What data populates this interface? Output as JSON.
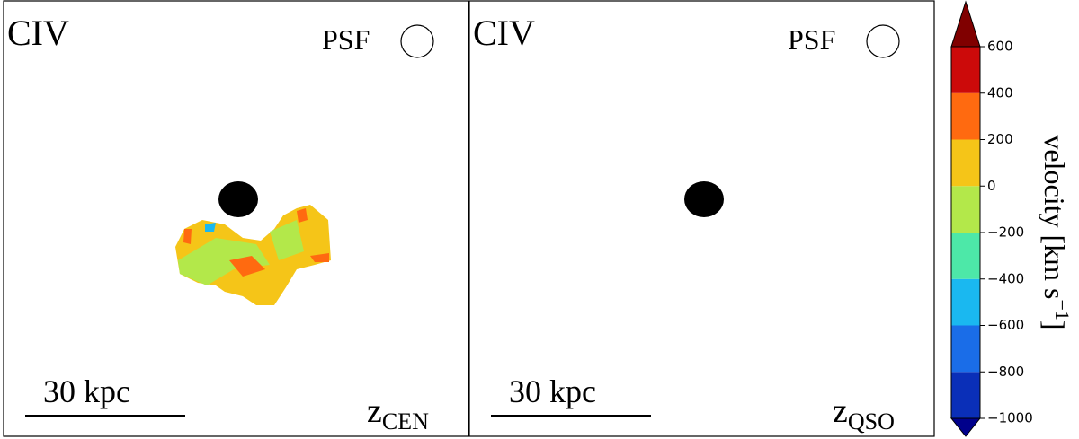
{
  "panels": [
    {
      "line": "CIV",
      "psf": "PSF",
      "scale": "30 kpc",
      "z": "z",
      "z_sub": "CEN"
    },
    {
      "line": "CIV",
      "psf": "PSF",
      "scale": "30 kpc",
      "z": "z",
      "z_sub": "QSO"
    }
  ],
  "colorbar": {
    "label": "velocity [km s",
    "label_sup": "−1",
    "label_end": "]",
    "lim": [
      -1000,
      600
    ],
    "ticks": [
      {
        "value": -1000,
        "label": "−1000"
      },
      {
        "value": -800,
        "label": "−800"
      },
      {
        "value": -600,
        "label": "−600"
      },
      {
        "value": -400,
        "label": "−400"
      },
      {
        "value": -200,
        "label": "−200"
      },
      0,
      200,
      400,
      600
    ],
    "colors": [
      "#0a2fb8",
      "#1a6de8",
      "#1ab8f0",
      "#4de8a8",
      "#b3e84a",
      "#f5c518",
      "#ff6a10",
      "#cc0a0a"
    ],
    "extend_colors": [
      "#00008b",
      "#800000"
    ]
  }
}
